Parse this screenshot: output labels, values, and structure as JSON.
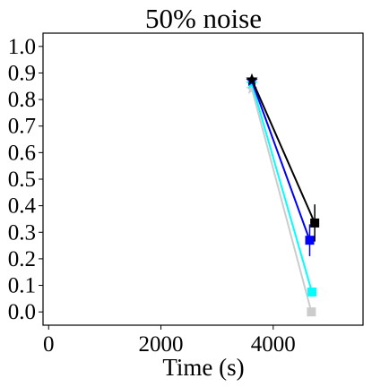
{
  "chart_data": {
    "type": "scatter",
    "title": "50% noise",
    "xlabel": "Time (s)",
    "ylabel": "",
    "xlim": [
      -100,
      5600
    ],
    "ylim": [
      -0.05,
      1.05
    ],
    "xticks": [
      0,
      2000,
      4000
    ],
    "xtick_labels": [
      "0",
      "2000",
      "4000"
    ],
    "yticks": [
      0.0,
      0.1,
      0.2,
      0.3,
      0.4,
      0.5,
      0.6,
      0.7,
      0.8,
      0.9,
      1.0
    ],
    "ytick_labels": [
      "0.0",
      "0.1",
      "0.2",
      "0.3",
      "0.4",
      "0.5",
      "0.6",
      "0.7",
      "0.8",
      "0.9",
      "1.0"
    ],
    "grid": false,
    "series": [
      {
        "color": "#000000",
        "line_color": "#000000",
        "start": {
          "x": 3620,
          "y": 0.875,
          "marker": "star"
        },
        "end": {
          "x": 4740,
          "y": 0.335,
          "err": 0.07,
          "marker": "square"
        }
      },
      {
        "color": "#0000ff",
        "line_color": "#0000ff",
        "start": {
          "x": 3620,
          "y": 0.87,
          "marker": "star"
        },
        "end": {
          "x": 4650,
          "y": 0.27,
          "err": 0.06,
          "marker": "square"
        }
      },
      {
        "color": "#00ffff",
        "line_color": "#00ffff",
        "start": {
          "x": 3620,
          "y": 0.86,
          "marker": "star"
        },
        "end": {
          "x": 4690,
          "y": 0.075,
          "err": 0.0,
          "marker": "square"
        }
      },
      {
        "color": "#cccccc",
        "line_color": "#cccccc",
        "start": {
          "x": 3620,
          "y": 0.84,
          "marker": "star"
        },
        "end": {
          "x": 4680,
          "y": 0.0,
          "err": 0.0,
          "marker": "square"
        }
      }
    ]
  }
}
